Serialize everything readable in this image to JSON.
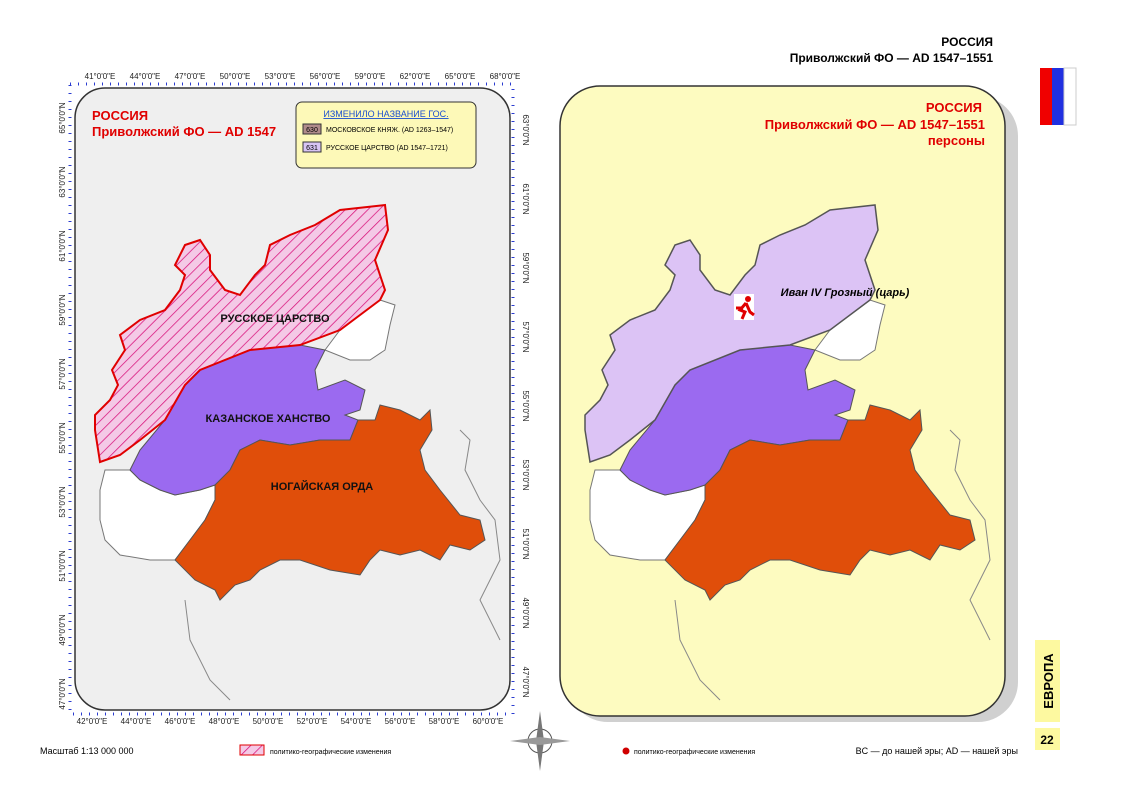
{
  "header": {
    "country": "РОССИЯ",
    "subtitle": "Приволжский ФО — AD 1547–1551"
  },
  "left_map": {
    "title": "РОССИЯ",
    "subtitle": "Приволжский ФО — AD 1547",
    "legend": {
      "title": "ИЗМЕНИЛО НАЗВАНИЕ ГОС.",
      "items": [
        {
          "code": "630",
          "label": "МОСКОВСКОЕ КНЯЖ. (AD 1263–1547)"
        },
        {
          "code": "631",
          "label": "РУССКОЕ ЦАРСТВО (AD 1547–1721)"
        }
      ]
    },
    "regions": [
      "РУССКОЕ ЦАРСТВО",
      "КАЗАНСКОЕ ХАНСТВО",
      "НОГАЙСКАЯ ОРДА"
    ],
    "lon_top": [
      "41°0'0\"E",
      "44°0'0\"E",
      "47°0'0\"E",
      "50°0'0\"E",
      "53°0'0\"E",
      "56°0'0\"E",
      "59°0'0\"E",
      "62°0'0\"E",
      "65°0'0\"E",
      "68°0'0\"E"
    ],
    "lon_bottom": [
      "42°0'0\"E",
      "44°0'0\"E",
      "46°0'0\"E",
      "48°0'0\"E",
      "50°0'0\"E",
      "52°0'0\"E",
      "54°0'0\"E",
      "56°0'0\"E",
      "58°0'0\"E",
      "60°0'0\"E"
    ],
    "lat_left": [
      "65°0'0\"N",
      "63°0'0\"N",
      "61°0'0\"N",
      "59°0'0\"N",
      "57°0'0\"N",
      "55°0'0\"N",
      "53°0'0\"N",
      "51°0'0\"N",
      "49°0'0\"N",
      "47°0'0\"N"
    ],
    "lat_right": [
      "63°0'0\"N",
      "61°0'0\"N",
      "59°0'0\"N",
      "57°0'0\"N",
      "55°0'0\"N",
      "53°0'0\"N",
      "51°0'0\"N",
      "49°0'0\"N",
      "47°0'0\"N"
    ]
  },
  "right_map": {
    "title": "РОССИЯ",
    "subtitle": "Приволжский ФО — AD 1547–1551",
    "note": "персоны",
    "person": "Иван IV Грозный (царь)"
  },
  "footer": {
    "scale": "Масштаб 1:13 000 000",
    "legend_left": "политико-географические изменения",
    "legend_right": "политико-географические изменения",
    "era_note": "BC — до нашей эры; AD — нашей эры",
    "section": "ЕВРОПА",
    "page": "22"
  }
}
